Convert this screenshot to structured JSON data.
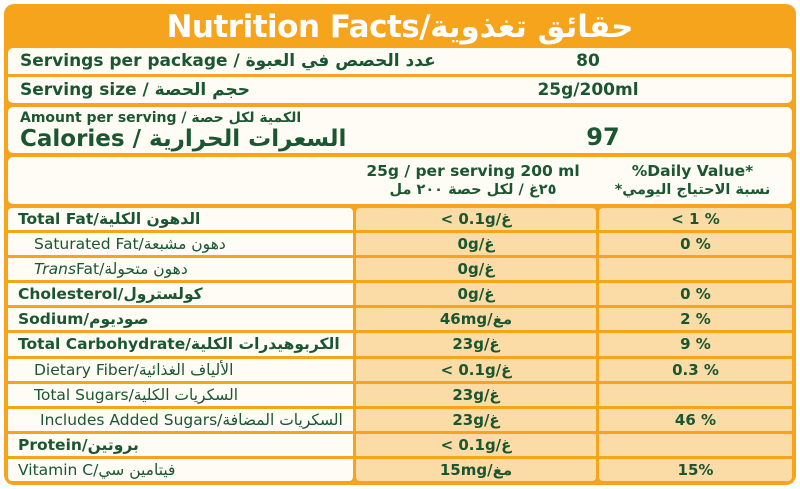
{
  "colors": {
    "orange": "#F7A41D",
    "panel_white": "#FEFCF4",
    "cell_peach": "#FBDCA6",
    "text_green": "#1A5632"
  },
  "title": "Nutrition Facts/حقائق تغذوية",
  "serving_info": {
    "rows": [
      {
        "label": "Servings per package / عدد الحصص في العبوة",
        "value": "80"
      },
      {
        "label": "Serving size /  حجم الحصة",
        "value": "25g/200ml"
      }
    ]
  },
  "calories": {
    "amount_label": "Amount per serving / الكمية لكل حصة",
    "label": "Calories / السعرات الحرارية",
    "value": "97"
  },
  "table": {
    "columns": {
      "serving_en": "25g / per serving 200 ml",
      "serving_ar": "٢٥غ / لكل حصة ٢٠٠ مل",
      "daily_value_en": "%Daily Value*",
      "daily_value_ar": "نسبة الاحتياج اليومي*"
    },
    "rows": [
      {
        "label": "Total Fat/الدهون الكلية",
        "amount": "< 0.1g/غ",
        "dv": "< 1 %",
        "bold": true,
        "indent": 0
      },
      {
        "label": "Saturated Fat/دهون مشبعة",
        "amount": "0g/غ",
        "dv": "0 %",
        "bold": false,
        "indent": 1
      },
      {
        "label_italic": "Trans",
        "label": " Fat/دهون متحولة",
        "amount": "0g/غ",
        "dv": "",
        "bold": false,
        "indent": 1
      },
      {
        "label": "Cholesterol/كولسترول",
        "amount": "0g/غ",
        "dv": "0 %",
        "bold": true,
        "indent": 0
      },
      {
        "label": "Sodium/صوديوم",
        "amount": "46mg/مغ",
        "dv": "2 %",
        "bold": true,
        "indent": 0
      },
      {
        "label": "Total Carbohydrate/الكربوهيدرات الكلية",
        "amount": "23g/غ",
        "dv": "9 %",
        "bold": true,
        "indent": 0
      },
      {
        "label": "Dietary Fiber/الألياف الغذائية",
        "amount": "< 0.1g/غ",
        "dv": "0.3 %",
        "bold": false,
        "indent": 1
      },
      {
        "label": "Total Sugars/السكريات الكلية",
        "amount": "23g/غ",
        "dv": "",
        "bold": false,
        "indent": 1
      },
      {
        "label": "Includes Added Sugars/السكريات المضافة",
        "amount": "23g/غ",
        "dv": "46 %",
        "bold": false,
        "indent": 2
      },
      {
        "label": "Protein/بروتين",
        "amount": "< 0.1g/غ",
        "dv": "",
        "bold": true,
        "indent": 0
      },
      {
        "label": "Vitamin C/فيتامين سي",
        "amount": "15mg/مغ",
        "dv": "15%",
        "bold": false,
        "indent": 0
      }
    ]
  }
}
